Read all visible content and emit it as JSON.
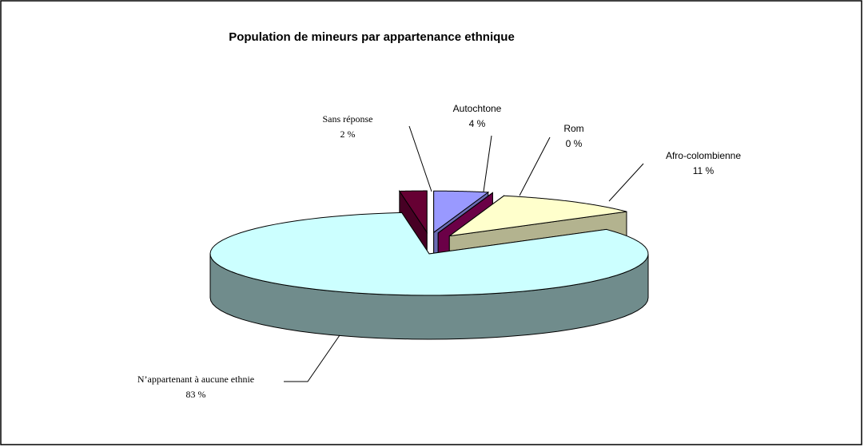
{
  "chart_data": {
    "type": "pie3d",
    "title": "Population de mineurs par appartenance ethnique",
    "categories": [
      "Autochtone",
      "Rom",
      "Afro-colombienne",
      "N’appartenant à aucune ethnie",
      "Sans réponse"
    ],
    "values": [
      4,
      0,
      11,
      83,
      2
    ],
    "value_labels": [
      "4 %",
      "0 %",
      "11 %",
      "83 %",
      "2 %"
    ],
    "colors": [
      "#9999ff",
      "#990066",
      "#ffffcc",
      "#ccffff",
      "#660033"
    ]
  }
}
